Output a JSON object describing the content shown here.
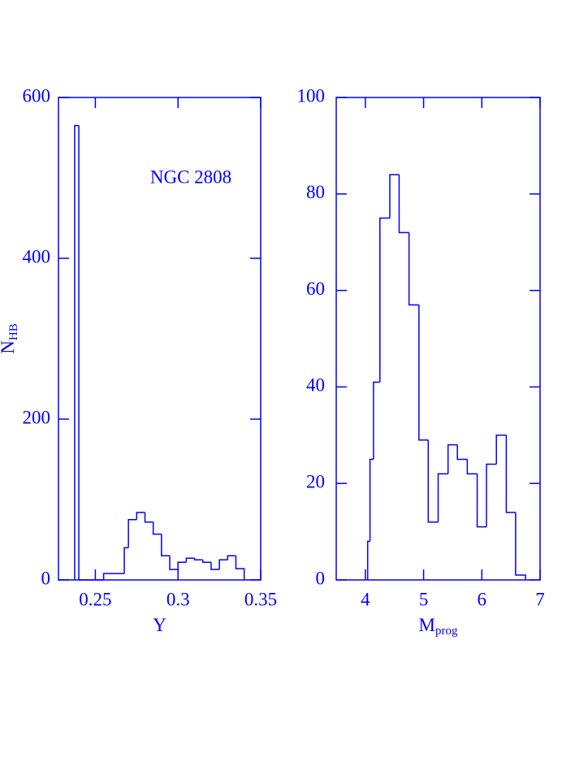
{
  "chart_data": [
    {
      "type": "histogram",
      "color": "#0000ff",
      "bins": [
        0.2375,
        0.24,
        0.255,
        0.2675,
        0.27,
        0.275,
        0.28,
        0.285,
        0.29,
        0.295,
        0.3,
        0.305,
        0.31,
        0.315,
        0.32,
        0.325,
        0.33,
        0.335,
        0.34
      ],
      "values": [
        565,
        0,
        8,
        40,
        75,
        84,
        72,
        57,
        30,
        13,
        22,
        27,
        25,
        22,
        13,
        25,
        30,
        14
      ],
      "xlim": [
        0.2277,
        0.35
      ],
      "ylim": [
        0,
        600
      ],
      "xticks": [
        0.25,
        0.3,
        0.35
      ],
      "yticks": [
        0,
        200,
        400,
        600
      ],
      "xlabel": {
        "text": "Y"
      },
      "ylabel": {
        "text": "N",
        "sub": "HB"
      },
      "annotation": "NGC 2808"
    },
    {
      "type": "histogram",
      "color": "#0000ff",
      "bins": [
        4.04,
        4.08,
        4.14,
        4.25,
        4.42,
        4.58,
        4.75,
        4.92,
        5.08,
        5.25,
        5.42,
        5.58,
        5.75,
        5.92,
        6.08,
        6.25,
        6.42,
        6.58,
        6.75
      ],
      "values": [
        8,
        25,
        41,
        75,
        84,
        72,
        57,
        29,
        12,
        22,
        28,
        25,
        22,
        11,
        24,
        30,
        14,
        1
      ],
      "xlim": [
        3.5,
        7
      ],
      "ylim": [
        0,
        100
      ],
      "xticks": [
        4,
        5,
        6,
        7
      ],
      "yticks": [
        0,
        20,
        40,
        60,
        80,
        100
      ],
      "xlabel": {
        "text": "M",
        "sub": "prog"
      }
    }
  ]
}
